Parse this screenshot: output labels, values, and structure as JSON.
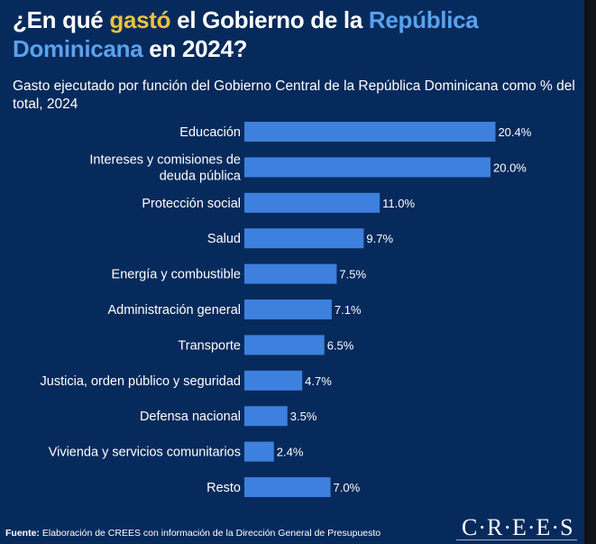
{
  "title": {
    "part1": "¿En qué ",
    "highlight1": "gastó",
    "part2": " el Gobierno de la ",
    "highlight2": "República Dominicana",
    "part3": " en 2024?"
  },
  "subtitle": "Gasto ejecutado por función del Gobierno Central de la República Dominicana como % del total,  2024",
  "colors": {
    "background": "#072a5c",
    "bar": "#3d80dd",
    "gold": "#e8c23c",
    "blue": "#5aa2ee"
  },
  "chart_data": {
    "type": "bar",
    "orientation": "horizontal",
    "categories": [
      [
        "Educación"
      ],
      [
        "Intereses y comisiones de",
        "deuda pública"
      ],
      [
        "Protección social"
      ],
      [
        "Salud"
      ],
      [
        "Energía y combustible"
      ],
      [
        "Administración general"
      ],
      [
        "Transporte"
      ],
      [
        "Justicia, orden público y seguridad"
      ],
      [
        "Defensa nacional"
      ],
      [
        "Vivienda y servicios comunitarios"
      ],
      [
        "Resto"
      ]
    ],
    "values": [
      20.4,
      20.0,
      11.0,
      9.7,
      7.5,
      7.1,
      6.5,
      4.7,
      3.5,
      2.4,
      7.0
    ],
    "value_labels": [
      "20.4%",
      "20.0%",
      "11.0%",
      "9.7%",
      "7.5%",
      "7.1%",
      "6.5%",
      "4.7%",
      "3.5%",
      "2.4%",
      "7.0%"
    ],
    "xlim": [
      0,
      22
    ],
    "grid": false,
    "legend": "none"
  },
  "footer": {
    "source_label": "Fuente:",
    "source_text": " Elaboración de CREES con información de la Dirección General de Presupuesto",
    "logo": "C·R·E·E·S"
  }
}
